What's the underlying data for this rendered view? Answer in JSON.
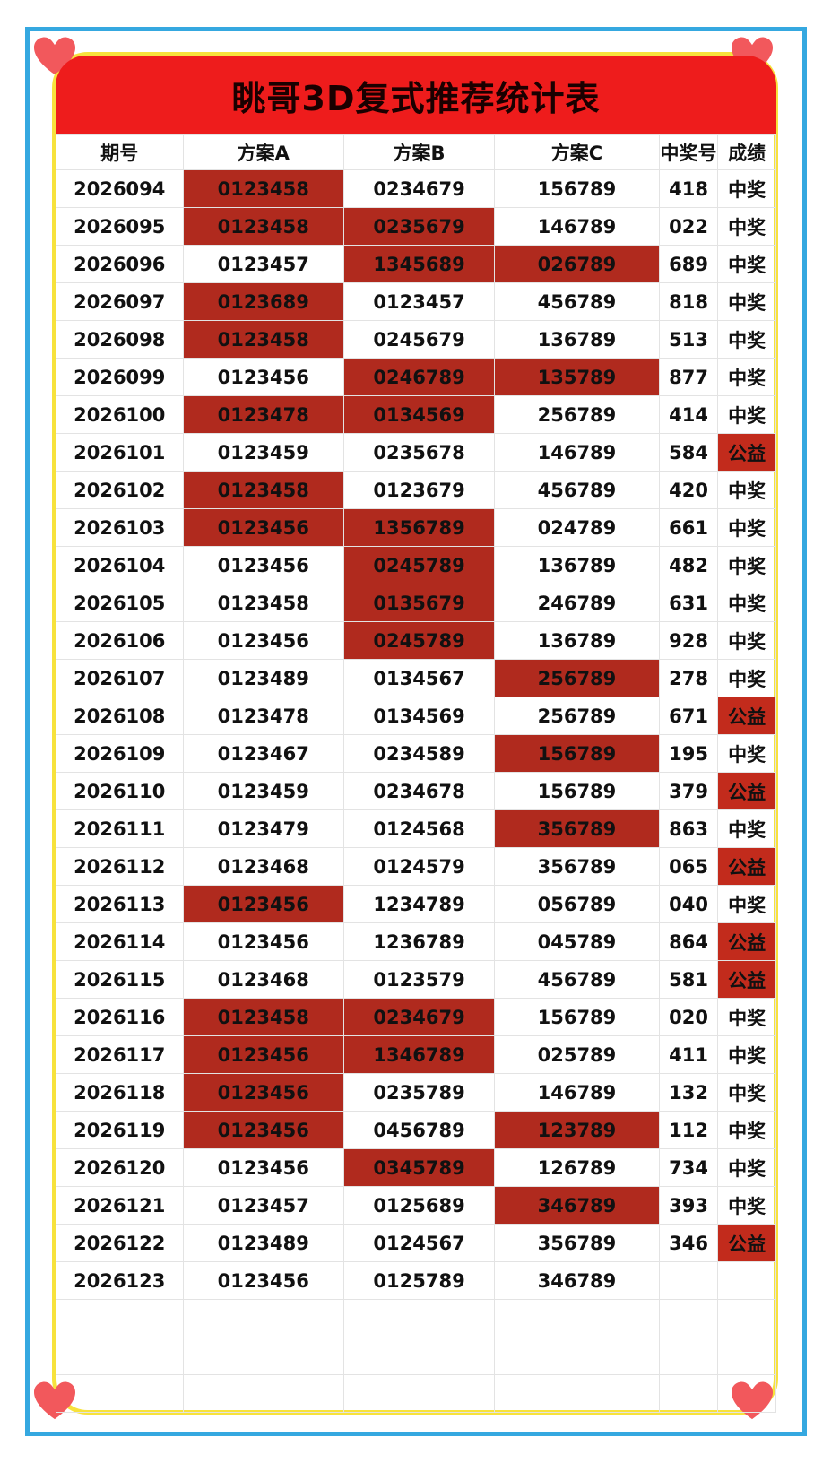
{
  "title": "眺哥3D复式推荐统计表",
  "colors": {
    "hit_cell": "#b02a1e",
    "charity_cell": "#c22b1c",
    "banner": "#ee1c1c",
    "frame_blue": "#35a8e0",
    "frame_yellow": "#f7e23c"
  },
  "icons": [
    "heart-icon-top-left",
    "heart-icon-top-right",
    "heart-icon-bottom-left",
    "heart-icon-bottom-right"
  ],
  "headers": [
    "期号",
    "方案A",
    "方案B",
    "方案C",
    "中奖号",
    "成绩"
  ],
  "rows": [
    {
      "issue": "2026094",
      "a": "0123458",
      "b": "0234679",
      "c": "156789",
      "win": "418",
      "result": "中奖",
      "hit": [
        true,
        false,
        false
      ],
      "gy": false
    },
    {
      "issue": "2026095",
      "a": "0123458",
      "b": "0235679",
      "c": "146789",
      "win": "022",
      "result": "中奖",
      "hit": [
        true,
        true,
        false
      ],
      "gy": false
    },
    {
      "issue": "2026096",
      "a": "0123457",
      "b": "1345689",
      "c": "026789",
      "win": "689",
      "result": "中奖",
      "hit": [
        false,
        true,
        true
      ],
      "gy": false
    },
    {
      "issue": "2026097",
      "a": "0123689",
      "b": "0123457",
      "c": "456789",
      "win": "818",
      "result": "中奖",
      "hit": [
        true,
        false,
        false
      ],
      "gy": false
    },
    {
      "issue": "2026098",
      "a": "0123458",
      "b": "0245679",
      "c": "136789",
      "win": "513",
      "result": "中奖",
      "hit": [
        true,
        false,
        false
      ],
      "gy": false
    },
    {
      "issue": "2026099",
      "a": "0123456",
      "b": "0246789",
      "c": "135789",
      "win": "877",
      "result": "中奖",
      "hit": [
        false,
        true,
        true
      ],
      "gy": false
    },
    {
      "issue": "2026100",
      "a": "0123478",
      "b": "0134569",
      "c": "256789",
      "win": "414",
      "result": "中奖",
      "hit": [
        true,
        true,
        false
      ],
      "gy": false
    },
    {
      "issue": "2026101",
      "a": "0123459",
      "b": "0235678",
      "c": "146789",
      "win": "584",
      "result": "公益",
      "hit": [
        false,
        false,
        false
      ],
      "gy": true
    },
    {
      "issue": "2026102",
      "a": "0123458",
      "b": "0123679",
      "c": "456789",
      "win": "420",
      "result": "中奖",
      "hit": [
        true,
        false,
        false
      ],
      "gy": false
    },
    {
      "issue": "2026103",
      "a": "0123456",
      "b": "1356789",
      "c": "024789",
      "win": "661",
      "result": "中奖",
      "hit": [
        true,
        true,
        false
      ],
      "gy": false
    },
    {
      "issue": "2026104",
      "a": "0123456",
      "b": "0245789",
      "c": "136789",
      "win": "482",
      "result": "中奖",
      "hit": [
        false,
        true,
        false
      ],
      "gy": false
    },
    {
      "issue": "2026105",
      "a": "0123458",
      "b": "0135679",
      "c": "246789",
      "win": "631",
      "result": "中奖",
      "hit": [
        false,
        true,
        false
      ],
      "gy": false
    },
    {
      "issue": "2026106",
      "a": "0123456",
      "b": "0245789",
      "c": "136789",
      "win": "928",
      "result": "中奖",
      "hit": [
        false,
        true,
        false
      ],
      "gy": false
    },
    {
      "issue": "2026107",
      "a": "0123489",
      "b": "0134567",
      "c": "256789",
      "win": "278",
      "result": "中奖",
      "hit": [
        false,
        false,
        true
      ],
      "gy": false
    },
    {
      "issue": "2026108",
      "a": "0123478",
      "b": "0134569",
      "c": "256789",
      "win": "671",
      "result": "公益",
      "hit": [
        false,
        false,
        false
      ],
      "gy": true
    },
    {
      "issue": "2026109",
      "a": "0123467",
      "b": "0234589",
      "c": "156789",
      "win": "195",
      "result": "中奖",
      "hit": [
        false,
        false,
        true
      ],
      "gy": false
    },
    {
      "issue": "2026110",
      "a": "0123459",
      "b": "0234678",
      "c": "156789",
      "win": "379",
      "result": "公益",
      "hit": [
        false,
        false,
        false
      ],
      "gy": true
    },
    {
      "issue": "2026111",
      "a": "0123479",
      "b": "0124568",
      "c": "356789",
      "win": "863",
      "result": "中奖",
      "hit": [
        false,
        false,
        true
      ],
      "gy": false
    },
    {
      "issue": "2026112",
      "a": "0123468",
      "b": "0124579",
      "c": "356789",
      "win": "065",
      "result": "公益",
      "hit": [
        false,
        false,
        false
      ],
      "gy": true
    },
    {
      "issue": "2026113",
      "a": "0123456",
      "b": "1234789",
      "c": "056789",
      "win": "040",
      "result": "中奖",
      "hit": [
        true,
        false,
        false
      ],
      "gy": false
    },
    {
      "issue": "2026114",
      "a": "0123456",
      "b": "1236789",
      "c": "045789",
      "win": "864",
      "result": "公益",
      "hit": [
        false,
        false,
        false
      ],
      "gy": true
    },
    {
      "issue": "2026115",
      "a": "0123468",
      "b": "0123579",
      "c": "456789",
      "win": "581",
      "result": "公益",
      "hit": [
        false,
        false,
        false
      ],
      "gy": true
    },
    {
      "issue": "2026116",
      "a": "0123458",
      "b": "0234679",
      "c": "156789",
      "win": "020",
      "result": "中奖",
      "hit": [
        true,
        true,
        false
      ],
      "gy": false
    },
    {
      "issue": "2026117",
      "a": "0123456",
      "b": "1346789",
      "c": "025789",
      "win": "411",
      "result": "中奖",
      "hit": [
        true,
        true,
        false
      ],
      "gy": false
    },
    {
      "issue": "2026118",
      "a": "0123456",
      "b": "0235789",
      "c": "146789",
      "win": "132",
      "result": "中奖",
      "hit": [
        true,
        false,
        false
      ],
      "gy": false
    },
    {
      "issue": "2026119",
      "a": "0123456",
      "b": "0456789",
      "c": "123789",
      "win": "112",
      "result": "中奖",
      "hit": [
        true,
        false,
        true
      ],
      "gy": false
    },
    {
      "issue": "2026120",
      "a": "0123456",
      "b": "0345789",
      "c": "126789",
      "win": "734",
      "result": "中奖",
      "hit": [
        false,
        true,
        false
      ],
      "gy": false
    },
    {
      "issue": "2026121",
      "a": "0123457",
      "b": "0125689",
      "c": "346789",
      "win": "393",
      "result": "中奖",
      "hit": [
        false,
        false,
        true
      ],
      "gy": false
    },
    {
      "issue": "2026122",
      "a": "0123489",
      "b": "0124567",
      "c": "356789",
      "win": "346",
      "result": "公益",
      "hit": [
        false,
        false,
        false
      ],
      "gy": true
    },
    {
      "issue": "2026123",
      "a": "0123456",
      "b": "0125789",
      "c": "346789",
      "win": "",
      "result": "",
      "hit": [
        false,
        false,
        false
      ],
      "gy": false
    }
  ],
  "empty_rows": 3
}
